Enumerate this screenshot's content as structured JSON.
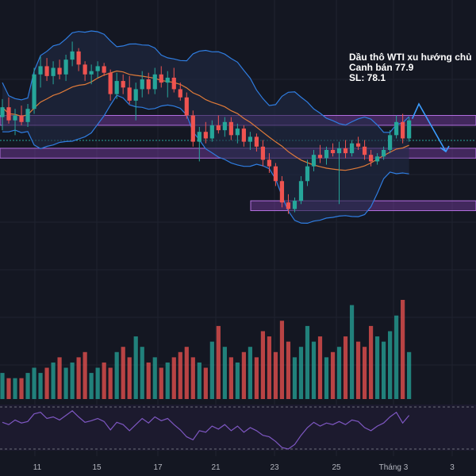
{
  "chart_data": {
    "type": "candlestick",
    "title": "",
    "annotation": [
      "Dầu thô WTI xu hướng chủ",
      "Canh bán 77.9",
      "SL: 78.1"
    ],
    "x_ticks": [
      "11",
      "15",
      "17",
      "21",
      "23",
      "25",
      "Tháng 3",
      "3"
    ],
    "price_scale": {
      "min": 68.5,
      "max": 83.0
    },
    "colors": {
      "up": "#26a69a",
      "down": "#ef5350",
      "band": "#2f7de1",
      "ma": "#e07b39",
      "zone": "#7b3fa6",
      "rsi": "#7e57c2",
      "arrow": "#3b9cff"
    },
    "zones": [
      {
        "low": 77.3,
        "high": 77.9
      },
      {
        "low": 75.3,
        "high": 75.9
      },
      {
        "low": 72.1,
        "high": 72.7
      }
    ],
    "forecast": {
      "from": 77.7,
      "peak": 78.6,
      "to": 75.7
    },
    "candles": [
      {
        "o": 77.8,
        "h": 78.9,
        "l": 77.0,
        "c": 78.4
      },
      {
        "o": 78.4,
        "h": 79.0,
        "l": 77.4,
        "c": 77.6
      },
      {
        "o": 77.6,
        "h": 78.3,
        "l": 76.7,
        "c": 77.9
      },
      {
        "o": 77.9,
        "h": 78.5,
        "l": 77.3,
        "c": 77.5
      },
      {
        "o": 77.5,
        "h": 78.6,
        "l": 77.2,
        "c": 78.3
      },
      {
        "o": 78.3,
        "h": 80.8,
        "l": 78.0,
        "c": 80.4
      },
      {
        "o": 80.4,
        "h": 81.5,
        "l": 79.6,
        "c": 80.9
      },
      {
        "o": 80.9,
        "h": 81.4,
        "l": 80.0,
        "c": 80.3
      },
      {
        "o": 80.3,
        "h": 81.2,
        "l": 79.8,
        "c": 80.8
      },
      {
        "o": 80.8,
        "h": 81.3,
        "l": 80.1,
        "c": 80.4
      },
      {
        "o": 80.4,
        "h": 81.6,
        "l": 80.0,
        "c": 81.3
      },
      {
        "o": 81.3,
        "h": 82.4,
        "l": 80.9,
        "c": 81.8
      },
      {
        "o": 81.8,
        "h": 82.0,
        "l": 80.6,
        "c": 81.0
      },
      {
        "o": 81.0,
        "h": 81.2,
        "l": 80.0,
        "c": 80.4
      },
      {
        "o": 80.4,
        "h": 81.0,
        "l": 79.8,
        "c": 80.6
      },
      {
        "o": 80.6,
        "h": 81.2,
        "l": 80.2,
        "c": 80.9
      },
      {
        "o": 80.9,
        "h": 81.1,
        "l": 80.3,
        "c": 80.5
      },
      {
        "o": 80.5,
        "h": 80.7,
        "l": 78.8,
        "c": 79.2
      },
      {
        "o": 79.2,
        "h": 80.5,
        "l": 78.9,
        "c": 80.0
      },
      {
        "o": 80.0,
        "h": 80.4,
        "l": 79.2,
        "c": 79.6
      },
      {
        "o": 79.6,
        "h": 80.3,
        "l": 78.6,
        "c": 78.8
      },
      {
        "o": 78.8,
        "h": 79.9,
        "l": 77.6,
        "c": 79.5
      },
      {
        "o": 79.5,
        "h": 80.6,
        "l": 79.0,
        "c": 80.1
      },
      {
        "o": 80.1,
        "h": 80.5,
        "l": 79.2,
        "c": 79.5
      },
      {
        "o": 79.5,
        "h": 80.8,
        "l": 79.2,
        "c": 80.4
      },
      {
        "o": 80.4,
        "h": 80.9,
        "l": 79.6,
        "c": 79.9
      },
      {
        "o": 79.9,
        "h": 80.6,
        "l": 79.0,
        "c": 80.2
      },
      {
        "o": 80.2,
        "h": 80.8,
        "l": 79.3,
        "c": 79.5
      },
      {
        "o": 79.5,
        "h": 79.9,
        "l": 78.8,
        "c": 79.0
      },
      {
        "o": 79.0,
        "h": 79.3,
        "l": 77.7,
        "c": 77.9
      },
      {
        "o": 77.9,
        "h": 78.2,
        "l": 76.0,
        "c": 76.3
      },
      {
        "o": 76.3,
        "h": 77.2,
        "l": 75.1,
        "c": 76.9
      },
      {
        "o": 76.9,
        "h": 77.5,
        "l": 76.2,
        "c": 76.5
      },
      {
        "o": 76.5,
        "h": 77.6,
        "l": 76.3,
        "c": 77.3
      },
      {
        "o": 77.3,
        "h": 77.9,
        "l": 76.8,
        "c": 77.0
      },
      {
        "o": 77.0,
        "h": 77.8,
        "l": 76.6,
        "c": 77.5
      },
      {
        "o": 77.5,
        "h": 77.8,
        "l": 76.4,
        "c": 76.7
      },
      {
        "o": 76.7,
        "h": 77.4,
        "l": 76.2,
        "c": 77.1
      },
      {
        "o": 77.1,
        "h": 77.3,
        "l": 76.0,
        "c": 76.3
      },
      {
        "o": 76.3,
        "h": 76.9,
        "l": 75.8,
        "c": 76.6
      },
      {
        "o": 76.6,
        "h": 76.8,
        "l": 75.7,
        "c": 76.0
      },
      {
        "o": 76.0,
        "h": 76.4,
        "l": 74.8,
        "c": 75.2
      },
      {
        "o": 75.2,
        "h": 75.6,
        "l": 74.4,
        "c": 74.8
      },
      {
        "o": 74.8,
        "h": 75.0,
        "l": 73.6,
        "c": 73.9
      },
      {
        "o": 73.9,
        "h": 74.2,
        "l": 72.3,
        "c": 72.6
      },
      {
        "o": 72.6,
        "h": 73.1,
        "l": 71.9,
        "c": 72.2
      },
      {
        "o": 72.2,
        "h": 72.9,
        "l": 72.0,
        "c": 72.7
      },
      {
        "o": 72.7,
        "h": 74.2,
        "l": 72.5,
        "c": 73.9
      },
      {
        "o": 73.9,
        "h": 75.2,
        "l": 73.6,
        "c": 74.8
      },
      {
        "o": 74.8,
        "h": 75.8,
        "l": 74.5,
        "c": 75.5
      },
      {
        "o": 75.5,
        "h": 76.1,
        "l": 75.0,
        "c": 75.3
      },
      {
        "o": 75.3,
        "h": 76.0,
        "l": 74.9,
        "c": 75.8
      },
      {
        "o": 75.8,
        "h": 76.2,
        "l": 75.4,
        "c": 75.6
      },
      {
        "o": 75.6,
        "h": 76.3,
        "l": 72.5,
        "c": 75.9
      },
      {
        "o": 75.9,
        "h": 76.4,
        "l": 75.3,
        "c": 75.6
      },
      {
        "o": 75.6,
        "h": 76.4,
        "l": 75.4,
        "c": 76.2
      },
      {
        "o": 76.2,
        "h": 76.6,
        "l": 75.8,
        "c": 76.0
      },
      {
        "o": 76.0,
        "h": 76.4,
        "l": 75.2,
        "c": 75.5
      },
      {
        "o": 75.5,
        "h": 75.8,
        "l": 74.8,
        "c": 75.1
      },
      {
        "o": 75.1,
        "h": 75.6,
        "l": 74.9,
        "c": 75.4
      },
      {
        "o": 75.4,
        "h": 76.0,
        "l": 75.2,
        "c": 75.8
      },
      {
        "o": 75.8,
        "h": 77.0,
        "l": 75.6,
        "c": 76.7
      },
      {
        "o": 76.7,
        "h": 77.9,
        "l": 76.5,
        "c": 77.5
      },
      {
        "o": 77.5,
        "h": 78.0,
        "l": 76.2,
        "c": 76.5
      },
      {
        "o": 76.5,
        "h": 77.8,
        "l": 76.3,
        "c": 77.6
      }
    ],
    "volume": [
      5,
      4,
      4,
      4,
      5,
      6,
      5,
      6,
      7,
      8,
      6,
      7,
      8,
      9,
      5,
      6,
      7,
      6,
      9,
      10,
      8,
      12,
      10,
      7,
      8,
      6,
      7,
      8,
      9,
      10,
      8,
      7,
      6,
      11,
      14,
      10,
      8,
      7,
      9,
      10,
      8,
      13,
      12,
      9,
      15,
      11,
      8,
      10,
      14,
      11,
      12,
      8,
      9,
      10,
      12,
      18,
      11,
      10,
      14,
      12,
      11,
      13,
      16,
      19,
      9
    ],
    "rsi": [
      55,
      52,
      58,
      54,
      56,
      66,
      68,
      60,
      62,
      58,
      64,
      70,
      62,
      55,
      57,
      60,
      56,
      45,
      55,
      52,
      44,
      52,
      60,
      54,
      62,
      57,
      60,
      52,
      45,
      36,
      32,
      44,
      42,
      50,
      46,
      52,
      44,
      50,
      42,
      48,
      44,
      38,
      36,
      30,
      22,
      20,
      26,
      38,
      48,
      55,
      50,
      54,
      52,
      56,
      52,
      58,
      56,
      48,
      44,
      50,
      54,
      62,
      68,
      54,
      64
    ]
  }
}
